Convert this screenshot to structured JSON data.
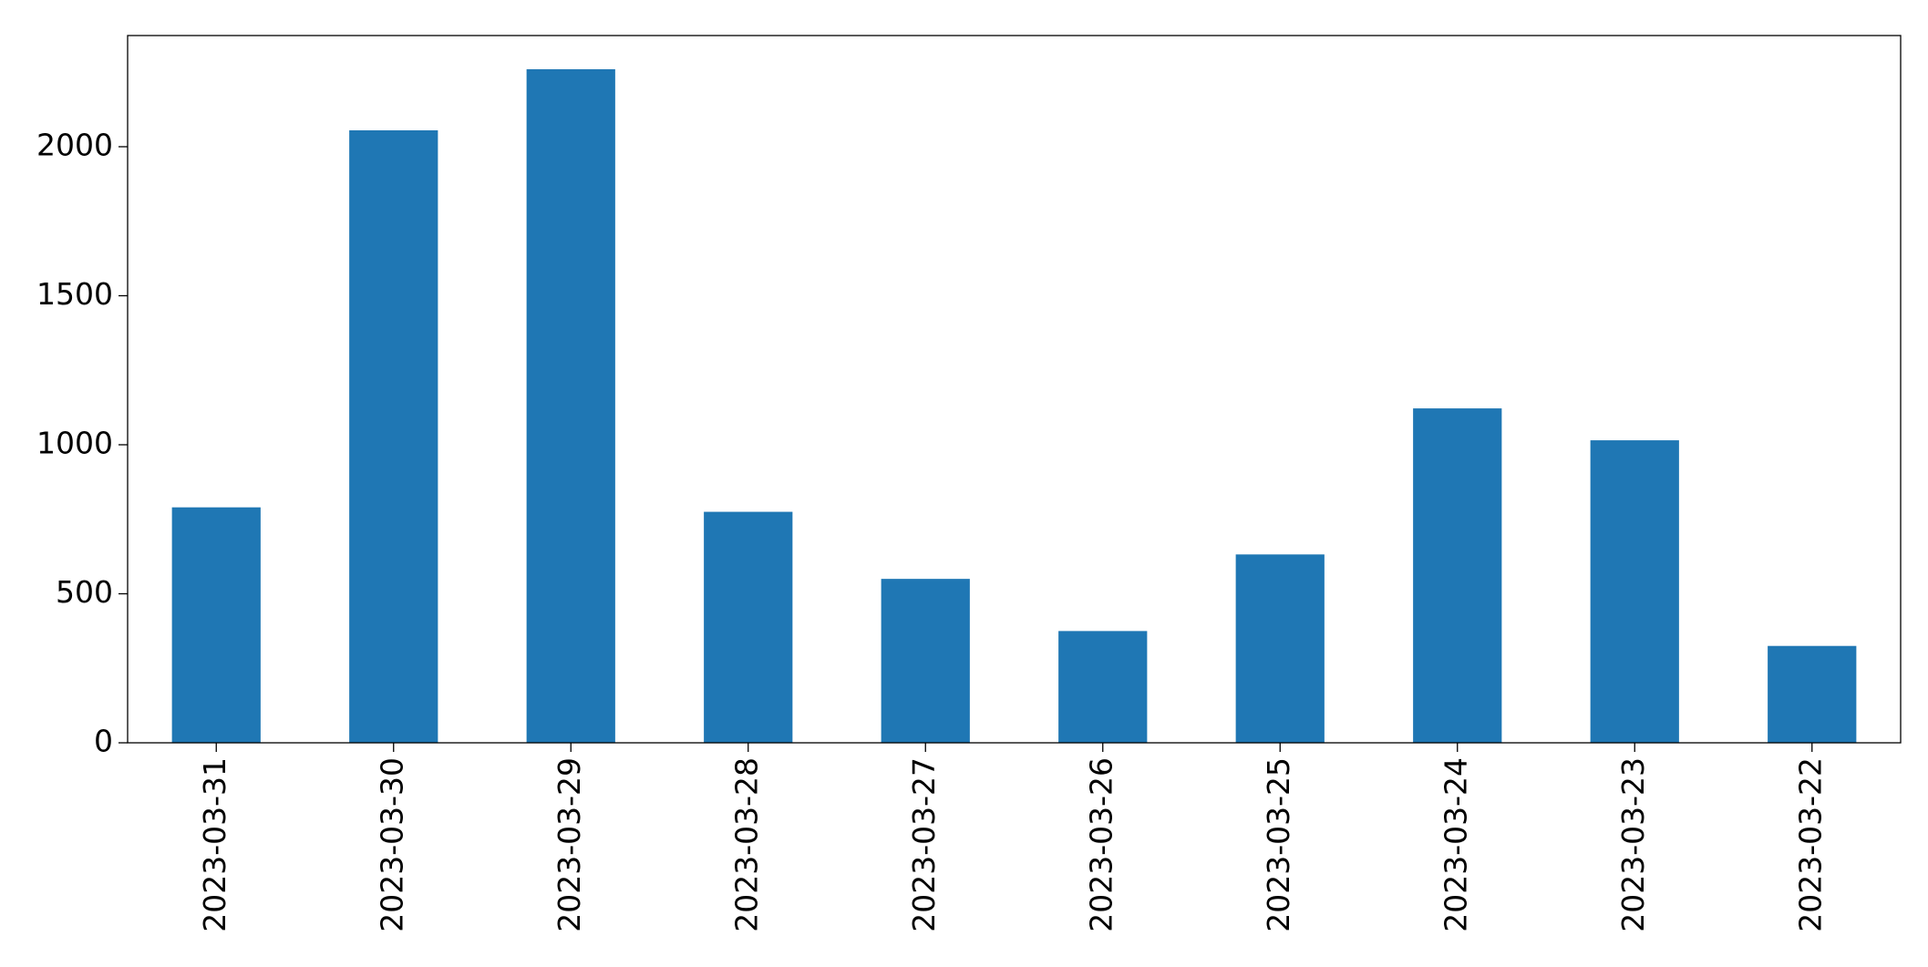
{
  "chart_data": {
    "type": "bar",
    "categories": [
      "2023-03-31",
      "2023-03-30",
      "2023-03-29",
      "2023-03-28",
      "2023-03-27",
      "2023-03-26",
      "2023-03-25",
      "2023-03-24",
      "2023-03-23",
      "2023-03-22"
    ],
    "values": [
      790,
      2055,
      2260,
      775,
      550,
      375,
      632,
      1122,
      1015,
      325
    ],
    "color": "#1f77b4",
    "ylim": [
      0,
      2373
    ],
    "yticks": [
      0,
      500,
      1000,
      1500,
      2000
    ],
    "grid": false
  }
}
